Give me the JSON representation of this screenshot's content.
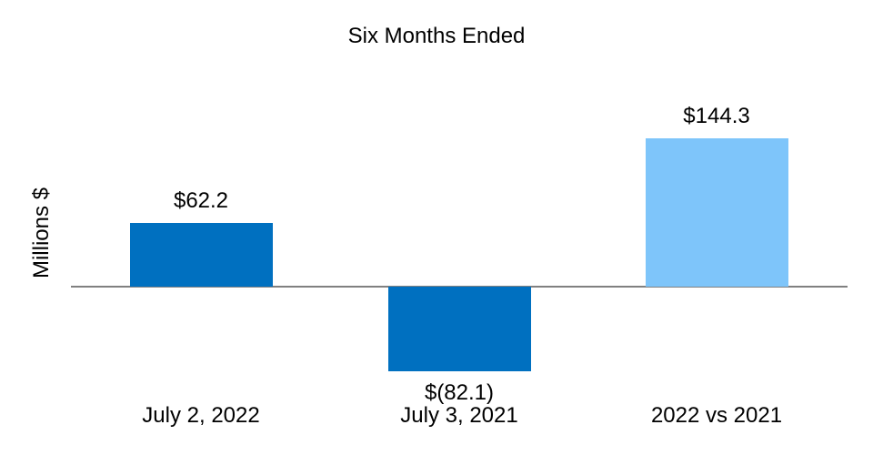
{
  "chart_data": {
    "type": "bar",
    "title": "Six Months Ended",
    "ylabel": "Millions $",
    "xlabel": "",
    "categories": [
      "July 2, 2022",
      "July 3, 2021",
      "2022 vs 2021"
    ],
    "values": [
      62.2,
      -82.1,
      144.3
    ],
    "value_labels": [
      "$62.2",
      "$(82.1)",
      "$144.3"
    ],
    "bar_colors": [
      "#0070C0",
      "#0070C0",
      "#7EC5FA"
    ],
    "axis_color": "#808080",
    "baseline": 0,
    "grid": false,
    "legend": false
  }
}
